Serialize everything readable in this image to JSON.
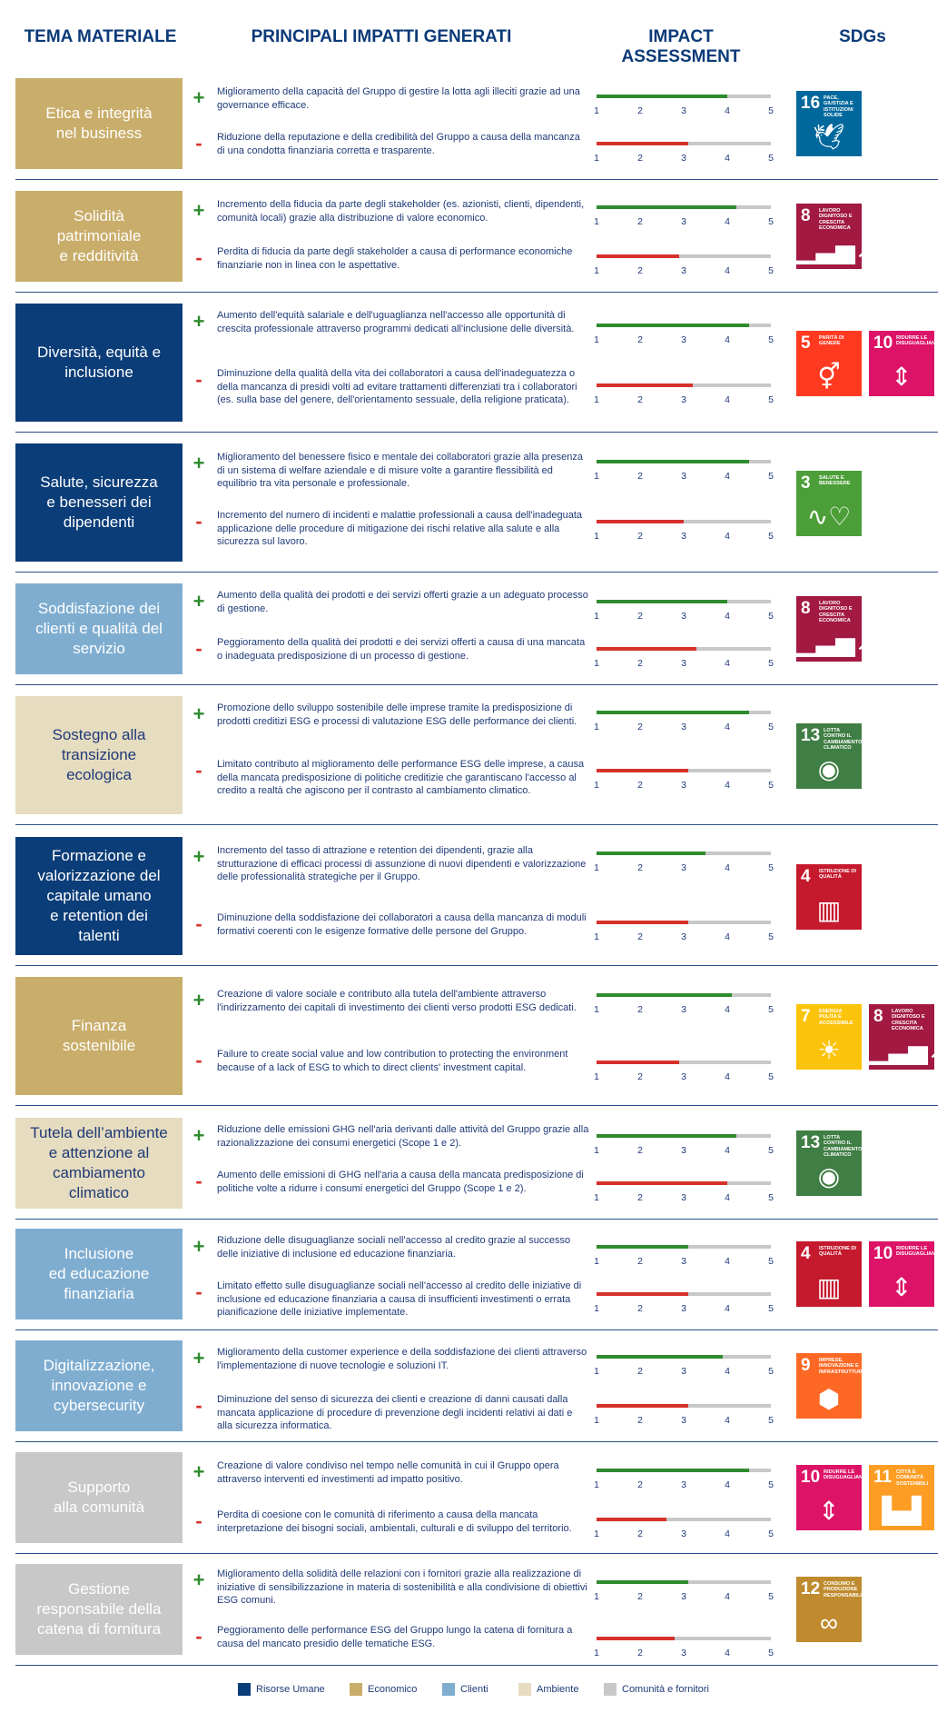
{
  "headers": {
    "tema": "TEMA MATERIALE",
    "impatti": "PRINCIPALI IMPATTI GENERATI",
    "assessment": "IMPACT ASSESSMENT",
    "sdgs": "SDGs"
  },
  "scale_labels": [
    "1",
    "2",
    "3",
    "4",
    "5"
  ],
  "colors": {
    "risorse_umane": "#0b3d78",
    "economico": "#c9ad6a",
    "clienti": "#7fadd0",
    "ambiente": "#e6dcbf",
    "comunita": "#c8c8c8",
    "positive": "#2e8b2e",
    "negative": "#d6312a"
  },
  "sdg_catalog": {
    "3": {
      "num": "3",
      "label": "SALUTE E BENESSERE",
      "color": "#4c9f38",
      "icon": "heartbeat-icon"
    },
    "4": {
      "num": "4",
      "label": "ISTRUZIONE DI QUALITÀ",
      "color": "#c5192d",
      "icon": "book-icon"
    },
    "5": {
      "num": "5",
      "label": "PARITÀ DI GENERE",
      "color": "#ff3a21",
      "icon": "gender-icon"
    },
    "7": {
      "num": "7",
      "label": "ENERGIA PULITA E ACCESSIBILE",
      "color": "#fcc30b",
      "icon": "sun-icon"
    },
    "8": {
      "num": "8",
      "label": "LAVORO DIGNITOSO E CRESCITA ECONOMICA",
      "color": "#a21942",
      "icon": "growth-chart-icon"
    },
    "9": {
      "num": "9",
      "label": "IMPRESE, INNOVAZIONE E INFRASTRUTTURE",
      "color": "#fd6925",
      "icon": "cubes-icon"
    },
    "10": {
      "num": "10",
      "label": "RIDURRE LE DISUGUAGLIANZE",
      "color": "#dd1367",
      "icon": "equality-icon"
    },
    "11": {
      "num": "11",
      "label": "CITTÀ E COMUNITÀ SOSTENIBILI",
      "color": "#fd9d24",
      "icon": "city-icon"
    },
    "12": {
      "num": "12",
      "label": "CONSUMO E PRODUZIONE RESPONSABILI",
      "color": "#bf8b2e",
      "icon": "infinity-icon"
    },
    "13": {
      "num": "13",
      "label": "LOTTA CONTRO IL CAMBIAMENTO CLIMATICO",
      "color": "#3f7e44",
      "icon": "eye-globe-icon"
    },
    "16": {
      "num": "16",
      "label": "PACE, GIUSTIZIA E ISTITUZIONI SOLIDE",
      "color": "#00689d",
      "icon": "dove-icon"
    }
  },
  "topics": [
    {
      "theme": "Etica e integrità\nnel business",
      "category": "economico",
      "positive": {
        "text": "Miglioramento della capacità del Gruppo di gestire la lotta agli illeciti grazie ad una governance efficace.",
        "score": 4
      },
      "negative": {
        "text": "Riduzione della reputazione e della credibilità del Gruppo a causa della mancanza di una condotta finanziaria corretta e trasparente.",
        "score": 3.1
      },
      "sdgs": [
        "16"
      ]
    },
    {
      "theme": "Solidità\npatrimoniale\ne redditività",
      "category": "economico",
      "positive": {
        "text": "Incremento della fiducia da parte degli stakeholder (es. azionisti, clienti, dipendenti, comunità locali) grazie alla distribuzione di valore economico.",
        "score": 4.2
      },
      "negative": {
        "text": "Perdita di fiducia da parte degli stakeholder a causa di performance economiche finanziarie non in linea con le aspettative.",
        "score": 2.9
      },
      "sdgs": [
        "8"
      ]
    },
    {
      "theme": "Diversità, equità e\ninclusione",
      "category": "risorse_umane",
      "positive": {
        "text": "Aumento dell'equità salariale e dell'uguaglianza nell'accesso alle opportunità di crescita professionale attraverso programmi dedicati all'inclusione delle diversità.",
        "score": 4.5
      },
      "negative": {
        "text": "Diminuzione della qualità della vita dei collaboratori a causa dell'inadeguatezza o della mancanza di presidi volti ad evitare trattamenti differenziati tra i collaboratori (es. sulla base del genere, dell'orientamento sessuale, della religione praticata).",
        "score": 3.2
      },
      "sdgs": [
        "5",
        "10"
      ]
    },
    {
      "theme": "Salute, sicurezza\ne benesseri dei\ndipendenti",
      "category": "risorse_umane",
      "positive": {
        "text": "Miglioramento del benessere fisico e mentale dei collaboratori grazie alla presenza di un sistema di welfare aziendale e di misure volte a garantire flessibilità ed equilibrio tra vita personale e professionale.",
        "score": 4.5
      },
      "negative": {
        "text": "Incremento del numero di incidenti e malattie professionali a causa dell'inadeguata applicazione delle procedure di mitigazione dei rischi relative alla salute e alla sicurezza sul lavoro.",
        "score": 3
      },
      "sdgs": [
        "3"
      ]
    },
    {
      "theme": "Soddisfazione dei\nclienti e qualità del\nservizio",
      "category": "clienti",
      "positive": {
        "text": "Aumento della qualità dei prodotti e dei servizi offerti grazie a un adeguato processo di gestione.",
        "score": 4
      },
      "negative": {
        "text": "Peggioramento della qualità dei prodotti e dei servizi offerti a causa di una mancata o inadeguata predisposizione di un processo di gestione.",
        "score": 3.3
      },
      "sdgs": [
        "8"
      ]
    },
    {
      "theme": "Sostegno alla\ntransizione\necologica",
      "category": "ambiente",
      "positive": {
        "text": "Promozione dello sviluppo sostenibile delle imprese tramite la predisposizione di prodotti creditizi ESG e processi di valutazione ESG delle performance dei clienti.",
        "score": 4.5
      },
      "negative": {
        "text": "Limitato contributo al miglioramento delle performance ESG delle imprese, a causa della mancata predisposizione di politiche creditizie che garantiscano l'accesso al credito a realtà che agiscono per il contrasto al cambiamento climatico.",
        "score": 3.1
      },
      "sdgs": [
        "13"
      ]
    },
    {
      "theme": "Formazione e\nvalorizzazione del\ncapitale umano\ne retention dei\ntalenti",
      "category": "risorse_umane",
      "positive": {
        "text": "Incremento del tasso di attrazione e retention dei dipendenti, grazie alla strutturazione di efficaci processi di assunzione di nuovi dipendenti e valorizzazione delle professionalità strategiche per il Gruppo.",
        "score": 3.5
      },
      "negative": {
        "text": "Diminuzione della soddisfazione dei collaboratori a causa della mancanza di moduli formativi coerenti con le esigenze formative delle persone del Gruppo.",
        "score": 3.1
      },
      "sdgs": [
        "4"
      ]
    },
    {
      "theme": "Finanza\nsostenibile",
      "category": "economico",
      "positive": {
        "text": "Creazione di valore sociale e contributo alla tutela dell'ambiente attraverso l'indirizzamento dei capitali di investimento dei clienti verso prodotti ESG dedicati.",
        "score": 4.1
      },
      "negative": {
        "text": "Failure to create social value and low contribution to protecting the environment because of a lack of  ESG to which to direct clients' investment capital.",
        "score": 2.9
      },
      "sdgs": [
        "7",
        "8"
      ]
    },
    {
      "theme": "Tutela dell’ambiente\ne attenzione al\ncambiamento\nclimatico",
      "category": "ambiente",
      "positive": {
        "text": "Riduzione delle emissioni GHG nell'aria derivanti dalle attività del Gruppo grazie alla razionalizzazione dei consumi energetici (Scope 1 e 2).",
        "score": 4.2
      },
      "negative": {
        "text": "Aumento delle emissioni di GHG nell'aria a causa della mancata predisposizione di politiche volte a ridurre i consumi energetici del Gruppo (Scope 1 e 2).",
        "score": 4
      },
      "sdgs": [
        "13"
      ]
    },
    {
      "theme": "Inclusione\ned educazione\nfinanziaria",
      "category": "clienti",
      "positive": {
        "text": "Riduzione delle disuguaglianze sociali nell'accesso al credito grazie al successo delle iniziative di inclusione ed educazione finanziaria.",
        "score": 3.1
      },
      "negative": {
        "text": "Limitato effetto sulle disuguaglianze sociali nell'accesso al credito delle iniziative di inclusione ed educazione finanziaria a causa di insufficienti investimenti o errata pianificazione delle iniziative implementate.",
        "score": 3.1
      },
      "sdgs": [
        "4",
        "10"
      ]
    },
    {
      "theme": "Digitalizzazione,\ninnovazione e\ncybersecurity",
      "category": "clienti",
      "positive": {
        "text": "Miglioramento della customer experience e della soddisfazione dei clienti attraverso l'implementazione di nuove tecnologie e soluzioni IT.",
        "score": 3.9
      },
      "negative": {
        "text": "Diminuzione del senso di sicurezza dei clienti e creazione di danni causati dalla mancata applicazione di procedure di prevenzione degli incidenti relativi ai dati e alla sicurezza informatica.",
        "score": 3.1
      },
      "sdgs": [
        "9"
      ]
    },
    {
      "theme": "Supporto\nalla comunità",
      "category": "comunita",
      "positive": {
        "text": "Creazione di valore condiviso nel tempo nelle comunità in cui il Gruppo opera attraverso interventi ed investimenti ad impatto positivo.",
        "score": 4.5
      },
      "negative": {
        "text": "Perdita di coesione con le comunità di riferimento a causa della mancata interpretazione dei bisogni sociali, ambientali, culturali e di sviluppo del territorio.",
        "score": 2.6
      },
      "sdgs": [
        "10",
        "11"
      ]
    },
    {
      "theme": "Gestione\nresponsabile della\ncatena di fornitura",
      "category": "comunita",
      "positive": {
        "text": "Miglioramento della solidità delle relazioni con i fornitori grazie alla realizzazione di iniziative di sensibilizzazione in materia di sostenibilità e alla condivisione di obiettivi ESG comuni.",
        "score": 3.1
      },
      "negative": {
        "text": "Peggioramento delle performance ESG del Gruppo lungo la catena di fornitura a causa del mancato presidio delle tematiche ESG.",
        "score": 2.8
      },
      "sdgs": [
        "12"
      ]
    }
  ],
  "legend": [
    {
      "label": "Risorse Umane",
      "key": "risorse_umane"
    },
    {
      "label": "Economico",
      "key": "economico"
    },
    {
      "label": "Clienti",
      "key": "clienti"
    },
    {
      "label": "Ambiente",
      "key": "ambiente"
    },
    {
      "label": "Comunità e fornitori",
      "key": "comunita"
    }
  ]
}
